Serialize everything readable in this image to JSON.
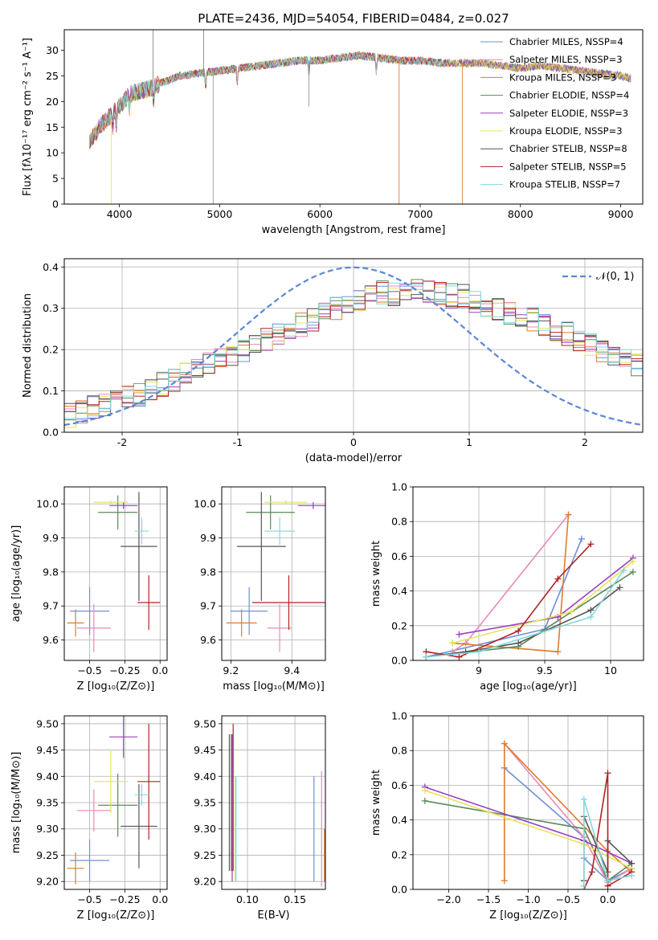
{
  "colors": {
    "Chabrier MILES": "#6f8fd6",
    "Salpeter MILES": "#e88ab8",
    "Kroupa MILES": "#e07b2e",
    "Chabrier ELODIE": "#5a8a5a",
    "Salpeter ELODIE": "#9b3fc0",
    "Kroupa ELODIE": "#e4e45a",
    "Chabrier STELIB": "#555555",
    "Salpeter STELIB": "#b22222",
    "Kroupa STELIB": "#80d8e0"
  },
  "chart_data": [
    {
      "id": "spectrum",
      "type": "line",
      "title": "PLATE=2436, MJD=54054, FIBERID=0484, z=0.027",
      "xlabel": "wavelength [Angstrom, rest frame]",
      "ylabel": "Flux [fλ10⁻¹⁷ erg cm⁻² s⁻¹ A⁻¹]",
      "xlim": [
        3450,
        9220
      ],
      "ylim": [
        0,
        34
      ],
      "xticks": [
        4000,
        5000,
        6000,
        7000,
        8000,
        9000
      ],
      "yticks": [
        0,
        5,
        10,
        15,
        20,
        25,
        30
      ],
      "grid": false,
      "legend_position": "top-right",
      "continuum_points": [
        [
          3700,
          12
        ],
        [
          3800,
          15
        ],
        [
          3900,
          17
        ],
        [
          4000,
          19
        ],
        [
          4100,
          21.5
        ],
        [
          4200,
          22
        ],
        [
          4300,
          22.5
        ],
        [
          4400,
          23.5
        ],
        [
          4600,
          25
        ],
        [
          4800,
          25.5
        ],
        [
          5000,
          26
        ],
        [
          5200,
          26.5
        ],
        [
          5400,
          27
        ],
        [
          5600,
          27.5
        ],
        [
          5800,
          28
        ],
        [
          6000,
          28
        ],
        [
          6200,
          28.5
        ],
        [
          6400,
          29
        ],
        [
          6600,
          28.5
        ],
        [
          6800,
          28
        ],
        [
          7000,
          28
        ],
        [
          7200,
          27.5
        ],
        [
          7400,
          27.5
        ],
        [
          7600,
          27.5
        ],
        [
          7800,
          27
        ],
        [
          8000,
          26.5
        ],
        [
          8200,
          27
        ],
        [
          8400,
          26.5
        ],
        [
          8600,
          26
        ],
        [
          8800,
          25.5
        ],
        [
          9000,
          25
        ],
        [
          9100,
          24.5
        ]
      ],
      "series": [
        {
          "name": "Chabrier MILES, N_SSP=4",
          "n_ssp": "4"
        },
        {
          "name": "Salpeter MILES, N_SSP=3",
          "n_ssp": "3"
        },
        {
          "name": "Kroupa MILES, N_SSP=3",
          "n_ssp": "3"
        },
        {
          "name": "Chabrier ELODIE, N_SSP=4",
          "n_ssp": "4"
        },
        {
          "name": "Salpeter ELODIE, N_SSP=3",
          "n_ssp": "3"
        },
        {
          "name": "Kroupa ELODIE, N_SSP=3",
          "n_ssp": "3"
        },
        {
          "name": "Chabrier STELIB, N_SSP=8",
          "n_ssp": "8"
        },
        {
          "name": "Salpeter STELIB, N_SSP=5",
          "n_ssp": "5"
        },
        {
          "name": "Kroupa STELIB, N_SSP=7",
          "n_ssp": "7"
        }
      ]
    },
    {
      "id": "residuals",
      "type": "histogram",
      "xlabel": "(data-model)/error",
      "ylabel": "Normed distribution",
      "xlim": [
        -2.5,
        2.5
      ],
      "ylim": [
        0,
        0.42
      ],
      "xticks": [
        -2,
        -1,
        0,
        1,
        2
      ],
      "yticks": [
        0.0,
        0.1,
        0.2,
        0.3,
        0.4
      ],
      "grid": true,
      "legend_label": "𝒩(0, 1)",
      "legend_position": "top-right",
      "bin_width": 0.1,
      "bin_start": -2.5,
      "envelope": [
        0.04,
        0.05,
        0.06,
        0.065,
        0.075,
        0.085,
        0.09,
        0.1,
        0.115,
        0.125,
        0.14,
        0.15,
        0.165,
        0.175,
        0.19,
        0.2,
        0.21,
        0.225,
        0.24,
        0.25,
        0.26,
        0.27,
        0.285,
        0.3,
        0.31,
        0.32,
        0.33,
        0.34,
        0.335,
        0.34,
        0.345,
        0.34,
        0.335,
        0.33,
        0.33,
        0.32,
        0.31,
        0.3,
        0.29,
        0.28,
        0.275,
        0.26,
        0.25,
        0.24,
        0.225,
        0.21,
        0.2,
        0.19,
        0.175,
        0.165
      ]
    },
    {
      "id": "age-vs-Z",
      "type": "errorbar",
      "xlabel": "Z [log₁₀(Z/Z⊙)]",
      "ylabel": "age  [log₁₀(age/yr)]",
      "xlim": [
        -0.68,
        0.05
      ],
      "ylim": [
        9.54,
        10.05
      ],
      "xticks": [
        -0.5,
        -0.25,
        0.0
      ],
      "xticklabels": [
        "−0.5",
        "−0.25",
        "0.0"
      ],
      "yticks": [
        9.6,
        9.7,
        9.8,
        9.9,
        10.0
      ],
      "grid": true,
      "points": [
        {
          "series": "Chabrier MILES",
          "x": -0.5,
          "xerr": 0.14,
          "y": 9.685,
          "yerr": 0.07
        },
        {
          "series": "Salpeter MILES",
          "x": -0.47,
          "xerr": 0.12,
          "y": 9.635,
          "yerr": 0.07
        },
        {
          "series": "Kroupa MILES",
          "x": -0.6,
          "xerr": 0.06,
          "y": 9.65,
          "yerr": 0.04
        },
        {
          "series": "Chabrier ELODIE",
          "x": -0.3,
          "xerr": 0.14,
          "y": 9.975,
          "yerr": 0.05
        },
        {
          "series": "Salpeter ELODIE",
          "x": -0.26,
          "xerr": 0.1,
          "y": 9.995,
          "yerr": 0.01
        },
        {
          "series": "Kroupa ELODIE",
          "x": -0.35,
          "xerr": 0.12,
          "y": 10.005,
          "yerr": 0.005
        },
        {
          "series": "Chabrier STELIB",
          "x": -0.15,
          "xerr": 0.13,
          "y": 9.875,
          "yerr": 0.16
        },
        {
          "series": "Salpeter STELIB",
          "x": -0.08,
          "xerr": 0.08,
          "y": 9.71,
          "yerr": 0.08
        },
        {
          "series": "Kroupa STELIB",
          "x": -0.13,
          "xerr": 0.05,
          "y": 9.92,
          "yerr": 0.04
        }
      ]
    },
    {
      "id": "age-vs-mass",
      "type": "errorbar",
      "xlabel": "mass [log₁₀(M/M⊙)]",
      "xlim": [
        9.17,
        9.51
      ],
      "ylim": [
        9.54,
        10.05
      ],
      "xticks": [
        9.2,
        9.4
      ],
      "yticks": [
        9.6,
        9.7,
        9.8,
        9.9,
        10.0
      ],
      "grid": true,
      "points": [
        {
          "series": "Chabrier MILES",
          "x": 9.26,
          "xerr": 0.06,
          "y": 9.685,
          "yerr": 0.07
        },
        {
          "series": "Salpeter MILES",
          "x": 9.36,
          "xerr": 0.04,
          "y": 9.635,
          "yerr": 0.07
        },
        {
          "series": "Kroupa MILES",
          "x": 9.235,
          "xerr": 0.05,
          "y": 9.65,
          "yerr": 0.04
        },
        {
          "series": "Chabrier ELODIE",
          "x": 9.33,
          "xerr": 0.08,
          "y": 9.975,
          "yerr": 0.05
        },
        {
          "series": "Salpeter ELODIE",
          "x": 9.47,
          "xerr": 0.05,
          "y": 9.995,
          "yerr": 0.01
        },
        {
          "series": "Kroupa ELODIE",
          "x": 9.38,
          "xerr": 0.07,
          "y": 10.005,
          "yerr": 0.005
        },
        {
          "series": "Chabrier STELIB",
          "x": 9.3,
          "xerr": 0.08,
          "y": 9.875,
          "yerr": 0.16
        },
        {
          "series": "Salpeter STELIB",
          "x": 9.39,
          "xerr": 0.12,
          "y": 9.71,
          "yerr": 0.08
        },
        {
          "series": "Kroupa STELIB",
          "x": 9.36,
          "xerr": 0.05,
          "y": 9.92,
          "yerr": 0.04
        }
      ]
    },
    {
      "id": "mass-vs-Z",
      "type": "errorbar",
      "xlabel": "Z [log₁₀(Z/Z⊙)]",
      "ylabel": "mass [log₁₀(M/M⊙)]",
      "xlim": [
        -0.68,
        0.05
      ],
      "ylim": [
        9.185,
        9.515
      ],
      "xticks": [
        -0.5,
        -0.25,
        0.0
      ],
      "xticklabels": [
        "−0.5",
        "−0.25",
        "0.0"
      ],
      "yticks": [
        9.2,
        9.25,
        9.3,
        9.35,
        9.4,
        9.45,
        9.5
      ],
      "grid": true,
      "points": [
        {
          "series": "Chabrier MILES",
          "x": -0.5,
          "xerr": 0.14,
          "y": 9.24,
          "yerr": 0.04
        },
        {
          "series": "Salpeter MILES",
          "x": -0.47,
          "xerr": 0.12,
          "y": 9.335,
          "yerr": 0.04
        },
        {
          "series": "Kroupa MILES",
          "x": -0.6,
          "xerr": 0.06,
          "y": 9.225,
          "yerr": 0.03
        },
        {
          "series": "Chabrier ELODIE",
          "x": -0.3,
          "xerr": 0.14,
          "y": 9.345,
          "yerr": 0.06
        },
        {
          "series": "Salpeter ELODIE",
          "x": -0.26,
          "xerr": 0.1,
          "y": 9.475,
          "yerr": 0.04
        },
        {
          "series": "Kroupa ELODIE",
          "x": -0.35,
          "xerr": 0.12,
          "y": 9.39,
          "yerr": 0.06
        },
        {
          "series": "Chabrier STELIB",
          "x": -0.15,
          "xerr": 0.13,
          "y": 9.305,
          "yerr": 0.08
        },
        {
          "series": "Salpeter STELIB",
          "x": -0.08,
          "xerr": 0.08,
          "y": 9.39,
          "yerr": 0.11
        },
        {
          "series": "Kroupa STELIB",
          "x": -0.13,
          "xerr": 0.05,
          "y": 9.365,
          "yerr": 0.02
        }
      ]
    },
    {
      "id": "mass-vs-EBV",
      "type": "errorbar",
      "xlabel": "E(B-V)",
      "xlim": [
        0.073,
        0.182
      ],
      "ylim": [
        9.185,
        9.515
      ],
      "xticks": [
        0.1,
        0.15
      ],
      "xticklabels": [
        "0.10",
        "0.15"
      ],
      "yticks": [
        9.2,
        9.25,
        9.3,
        9.35,
        9.4,
        9.45,
        9.5
      ],
      "grid": true,
      "points": [
        {
          "series": "Chabrier MILES",
          "x": 0.17,
          "xerr": 0,
          "y": 9.3,
          "yerr": 0.1
        },
        {
          "series": "Salpeter MILES",
          "x": 0.178,
          "xerr": 0,
          "y": 9.3,
          "yerr": 0.11
        },
        {
          "series": "Kroupa MILES",
          "x": 0.181,
          "xerr": 0,
          "y": 9.25,
          "yerr": 0.05
        },
        {
          "series": "Chabrier ELODIE",
          "x": 0.083,
          "xerr": 0,
          "y": 9.35,
          "yerr": 0.13
        },
        {
          "series": "Salpeter ELODIE",
          "x": 0.084,
          "xerr": 0,
          "y": 9.34,
          "yerr": 0.14
        },
        {
          "series": "Kroupa ELODIE",
          "x": 0.087,
          "xerr": 0,
          "y": 9.3,
          "yerr": 0.1
        },
        {
          "series": "Chabrier STELIB",
          "x": 0.081,
          "xerr": 0,
          "y": 9.35,
          "yerr": 0.13
        },
        {
          "series": "Salpeter STELIB",
          "x": 0.085,
          "xerr": 0,
          "y": 9.36,
          "yerr": 0.14
        },
        {
          "series": "Kroupa STELIB",
          "x": 0.088,
          "xerr": 0,
          "y": 9.3,
          "yerr": 0.1
        }
      ]
    },
    {
      "id": "weight-vs-age",
      "type": "line",
      "xlabel": "age  [log₁₀(age/yr)]",
      "ylabel": "mass weight",
      "xlim": [
        8.5,
        10.25
      ],
      "ylim": [
        0,
        1.0
      ],
      "xticks": [
        9.0,
        9.5,
        10.0
      ],
      "yticks": [
        0.0,
        0.2,
        0.4,
        0.6,
        0.8,
        1.0
      ],
      "grid": true,
      "series": [
        {
          "name": "Chabrier MILES",
          "x": [
            8.6,
            9.5,
            9.78
          ],
          "y": [
            0.02,
            0.18,
            0.7
          ]
        },
        {
          "name": "Salpeter MILES",
          "x": [
            8.8,
            8.9,
            9.68
          ],
          "y": [
            0.05,
            0.1,
            0.84
          ]
        },
        {
          "name": "Kroupa MILES",
          "x": [
            8.8,
            9.6,
            9.68
          ],
          "y": [
            0.1,
            0.05,
            0.84
          ]
        },
        {
          "name": "Chabrier ELODIE",
          "x": [
            8.6,
            9.3,
            10.17
          ],
          "y": [
            0.02,
            0.08,
            0.51
          ]
        },
        {
          "name": "Salpeter ELODIE",
          "x": [
            8.85,
            9.6,
            10.17
          ],
          "y": [
            0.15,
            0.25,
            0.59
          ]
        },
        {
          "name": "Kroupa ELODIE",
          "x": [
            8.8,
            9.7,
            10.17
          ],
          "y": [
            0.1,
            0.28,
            0.57
          ]
        },
        {
          "name": "Chabrier STELIB",
          "x": [
            8.6,
            8.9,
            9.3,
            9.85,
            10.07
          ],
          "y": [
            0.02,
            0.05,
            0.1,
            0.29,
            0.42
          ]
        },
        {
          "name": "Salpeter STELIB",
          "x": [
            8.6,
            8.85,
            9.3,
            9.6,
            9.85
          ],
          "y": [
            0.05,
            0.02,
            0.17,
            0.47,
            0.67
          ]
        },
        {
          "name": "Kroupa STELIB",
          "x": [
            8.6,
            9.0,
            9.85,
            10.1
          ],
          "y": [
            0.02,
            0.05,
            0.25,
            0.52
          ]
        }
      ]
    },
    {
      "id": "weight-vs-Z",
      "type": "line",
      "xlabel": "Z [log₁₀(Z/Z⊙)]",
      "ylabel": "mass weight",
      "xlim": [
        -2.45,
        0.45
      ],
      "ylim": [
        0,
        1.0
      ],
      "xticks": [
        -2.0,
        -1.5,
        -1.0,
        -0.5,
        0.0
      ],
      "xticklabels": [
        "−2.0",
        "−1.5",
        "−1.0",
        "−0.5",
        "0.0"
      ],
      "yticks": [
        0.0,
        0.2,
        0.4,
        0.6,
        0.8,
        1.0
      ],
      "grid": true,
      "series": [
        {
          "name": "Chabrier MILES",
          "x": [
            -1.3,
            -0.3,
            -0.3,
            0.0,
            0.3
          ],
          "y": [
            0.7,
            0.3,
            0.18,
            0.05,
            0.12
          ]
        },
        {
          "name": "Salpeter MILES",
          "x": [
            -1.3,
            -0.3,
            0.0,
            0.3
          ],
          "y": [
            0.84,
            0.3,
            0.04,
            0.12
          ]
        },
        {
          "name": "Kroupa MILES",
          "x": [
            -1.3,
            -1.3,
            0.0,
            0.3
          ],
          "y": [
            0.05,
            0.84,
            0.22,
            0.1
          ]
        },
        {
          "name": "Chabrier ELODIE",
          "x": [
            -2.3,
            -0.3,
            0.0,
            0.3
          ],
          "y": [
            0.51,
            0.35,
            0.05,
            0.15
          ]
        },
        {
          "name": "Salpeter ELODIE",
          "x": [
            -2.3,
            -0.3,
            0.3
          ],
          "y": [
            0.59,
            0.28,
            0.15
          ]
        },
        {
          "name": "Kroupa ELODIE",
          "x": [
            -2.3,
            -0.3,
            0.3
          ],
          "y": [
            0.57,
            0.26,
            0.12
          ]
        },
        {
          "name": "Chabrier STELIB",
          "x": [
            -0.3,
            -0.3,
            0.0,
            0.0,
            0.3
          ],
          "y": [
            0.05,
            0.42,
            0.1,
            0.28,
            0.15
          ]
        },
        {
          "name": "Salpeter STELIB",
          "x": [
            -0.3,
            -0.2,
            0.0,
            0.0,
            0.3
          ],
          "y": [
            0.0,
            0.1,
            0.67,
            0.02,
            0.1
          ]
        },
        {
          "name": "Kroupa STELIB",
          "x": [
            -0.3,
            -0.3,
            0.0,
            0.3
          ],
          "y": [
            0.02,
            0.52,
            0.05,
            0.08
          ]
        }
      ]
    }
  ]
}
